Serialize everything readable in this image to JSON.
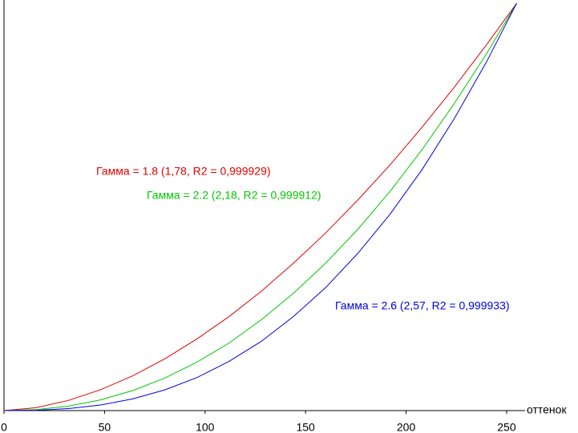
{
  "chart_data": {
    "type": "line",
    "x": [
      0,
      16,
      32,
      48,
      64,
      80,
      96,
      112,
      128,
      144,
      160,
      176,
      192,
      208,
      224,
      240,
      255
    ],
    "series": [
      {
        "name": "Гамма = 1.8 (1,78, R2 = 0,999929)",
        "color": "#e00000",
        "values": [
          0,
          0.0072,
          0.0249,
          0.0512,
          0.0854,
          0.127,
          0.176,
          0.231,
          0.293,
          0.362,
          0.436,
          0.517,
          0.603,
          0.696,
          0.794,
          0.898,
          1
        ]
      },
      {
        "name": "Гамма = 2.2 (2,18, R2 = 0,999912)",
        "color": "#00c800",
        "values": [
          0,
          0.0024,
          0.0109,
          0.0262,
          0.0491,
          0.0799,
          0.119,
          0.166,
          0.223,
          0.288,
          0.362,
          0.445,
          0.538,
          0.641,
          0.754,
          0.876,
          1
        ]
      },
      {
        "name": "Гамма = 2.6 (2,57, R2 = 0,999933)",
        "color": "#0000e0",
        "values": [
          0,
          0.0008,
          0.0048,
          0.0137,
          0.0287,
          0.0508,
          0.0812,
          0.121,
          0.17,
          0.231,
          0.302,
          0.386,
          0.482,
          0.592,
          0.717,
          0.856,
          1
        ]
      }
    ],
    "x_label": "оттенок",
    "xlim": [
      0,
      255
    ],
    "ylim": [
      0,
      1
    ],
    "xticks": [
      0,
      50,
      100,
      150,
      200,
      250
    ]
  }
}
